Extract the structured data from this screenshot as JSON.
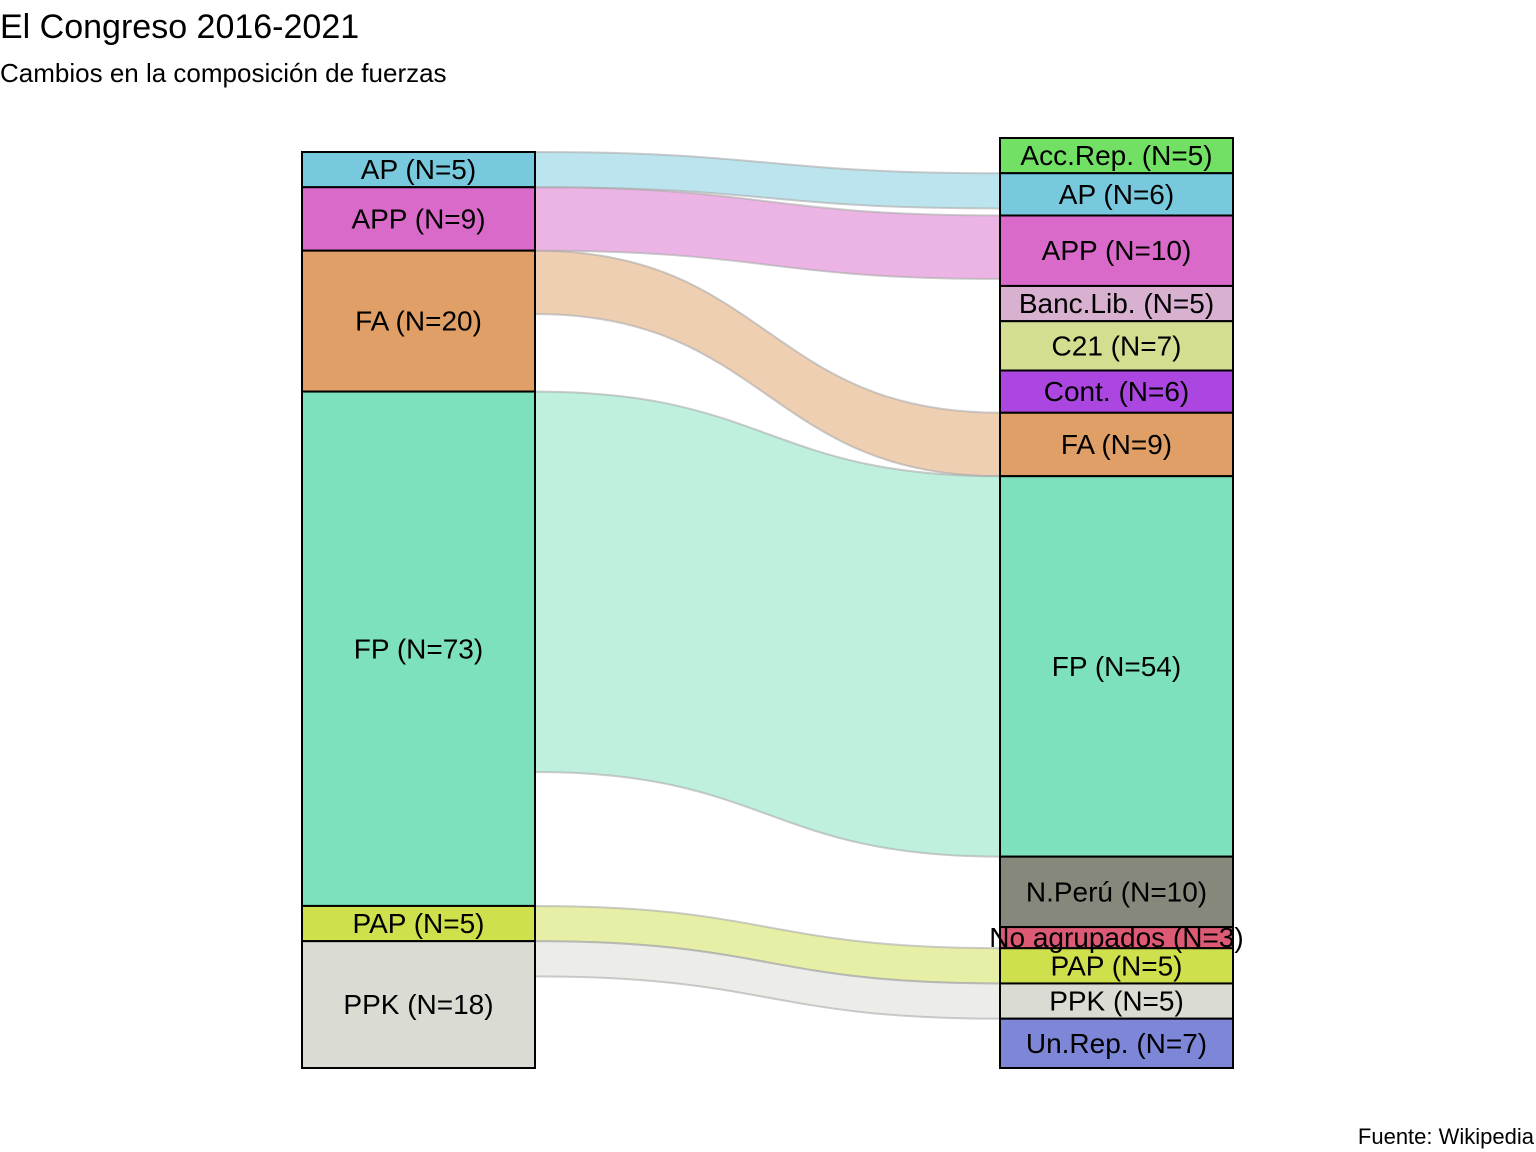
{
  "title": "El Congreso 2016-2021",
  "subtitle": "Cambios en la composición de fuerzas",
  "caption": "Fuente: Wikipedia",
  "chart_data": {
    "type": "sankey",
    "left_axis": [
      {
        "id": "AP",
        "label": "AP (N=5)",
        "value": 5,
        "color": "#78c9de"
      },
      {
        "id": "APP",
        "label": "APP (N=9)",
        "value": 9,
        "color": "#d96ac9"
      },
      {
        "id": "FA",
        "label": "FA (N=20)",
        "value": 20,
        "color": "#e09f66"
      },
      {
        "id": "FP",
        "label": "FP (N=73)",
        "value": 73,
        "color": "#7de2bc"
      },
      {
        "id": "PAP",
        "label": "PAP (N=5)",
        "value": 5,
        "color": "#cee04b"
      },
      {
        "id": "PPK",
        "label": "PPK (N=18)",
        "value": 18,
        "color": "#dadcd3"
      }
    ],
    "right_axis": [
      {
        "id": "AccRep",
        "label": "Acc.Rep. (N=5)",
        "value": 5,
        "color": "#72e065"
      },
      {
        "id": "AP",
        "label": "AP (N=6)",
        "value": 6,
        "color": "#78c9de"
      },
      {
        "id": "APP",
        "label": "APP (N=10)",
        "value": 10,
        "color": "#d96ac9"
      },
      {
        "id": "BancLib",
        "label": "Banc.Lib. (N=5)",
        "value": 5,
        "color": "#d8b1d1"
      },
      {
        "id": "C21",
        "label": "C21 (N=7)",
        "value": 7,
        "color": "#d4dd90"
      },
      {
        "id": "Cont",
        "label": "Cont. (N=6)",
        "value": 6,
        "color": "#ab46e0"
      },
      {
        "id": "FA",
        "label": "FA (N=9)",
        "value": 9,
        "color": "#e09f66"
      },
      {
        "id": "FP",
        "label": "FP (N=54)",
        "value": 54,
        "color": "#7de2bc"
      },
      {
        "id": "NPeru",
        "label": "N.Perú (N=10)",
        "value": 10,
        "color": "#85887a"
      },
      {
        "id": "NoAgr",
        "label": "No agrupados (N=3)",
        "value": 3,
        "color": "#dc5a74"
      },
      {
        "id": "PAP",
        "label": "PAP (N=5)",
        "value": 5,
        "color": "#cee04b"
      },
      {
        "id": "PPK",
        "label": "PPK (N=5)",
        "value": 5,
        "color": "#dadcd3"
      },
      {
        "id": "UnRep",
        "label": "Un.Rep. (N=7)",
        "value": 7,
        "color": "#7e86d8"
      }
    ],
    "flows": [
      {
        "from": "AP",
        "to": "AP",
        "value": 5
      },
      {
        "from": "APP",
        "to": "APP",
        "value": 9
      },
      {
        "from": "FA",
        "to": "FA",
        "value": 9
      },
      {
        "from": "FP",
        "to": "FP",
        "value": 54
      },
      {
        "from": "PAP",
        "to": "PAP",
        "value": 5
      },
      {
        "from": "PPK",
        "to": "PPK",
        "value": 5
      }
    ]
  }
}
